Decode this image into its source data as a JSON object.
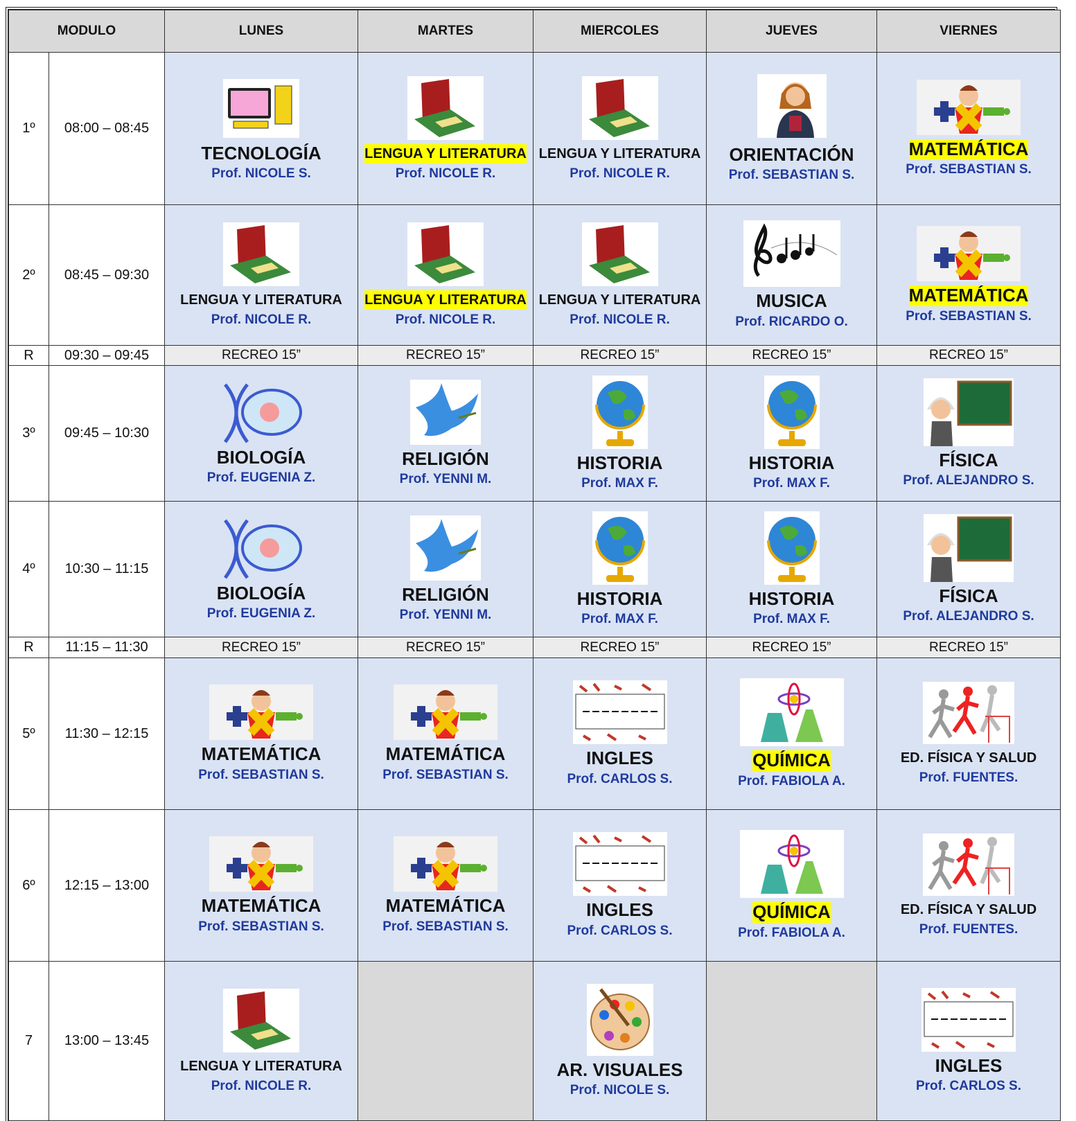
{
  "header": {
    "module": "MODULO",
    "days": [
      "LUNES",
      "MARTES",
      "MIERCOLES",
      "JUEVES",
      "VIERNES"
    ]
  },
  "rows": [
    {
      "module": "1º",
      "time": "08:00 – 08:45",
      "cells": [
        {
          "subject": "TECNOLOGÍA",
          "teacher": "Prof. NICOLE S."
        },
        {
          "subject": "LENGUA Y LITERATURA",
          "teacher": "Prof. NICOLE R."
        },
        {
          "subject": "LENGUA Y LITERATURA",
          "teacher": "Prof. NICOLE R."
        },
        {
          "subject": "ORIENTACIÓN",
          "teacher": "Prof. SEBASTIAN S."
        },
        {
          "subject": "MATEMÁTICA",
          "teacher": "Prof. SEBASTIAN S."
        }
      ]
    },
    {
      "module": "2º",
      "time": "08:45 – 09:30",
      "cells": [
        {
          "subject": "LENGUA Y LITERATURA",
          "teacher": "Prof. NICOLE R."
        },
        {
          "subject": "LENGUA Y LITERATURA",
          "teacher": "Prof. NICOLE R."
        },
        {
          "subject": "LENGUA Y LITERATURA",
          "teacher": "Prof. NICOLE R."
        },
        {
          "subject": "MUSICA",
          "teacher": "Prof. RICARDO O."
        },
        {
          "subject": "MATEMÁTICA",
          "teacher": "Prof. SEBASTIAN S."
        }
      ]
    },
    {
      "module": "R",
      "time": "09:30 – 09:45",
      "cells": [
        "RECREO 15”",
        "RECREO 15”",
        "RECREO 15”",
        "RECREO 15”",
        "RECREO 15”"
      ]
    },
    {
      "module": "3º",
      "time": "09:45 – 10:30",
      "cells": [
        {
          "subject": "BIOLOGÍA",
          "teacher": "Prof. EUGENIA Z."
        },
        {
          "subject": "RELIGIÓN",
          "teacher": "Prof. YENNI M."
        },
        {
          "subject": "HISTORIA",
          "teacher": "Prof. MAX F."
        },
        {
          "subject": "HISTORIA",
          "teacher": "Prof. MAX F."
        },
        {
          "subject": "FÍSICA",
          "teacher": "Prof. ALEJANDRO S."
        }
      ]
    },
    {
      "module": "4º",
      "time": "10:30 – 11:15",
      "cells": [
        {
          "subject": "BIOLOGÍA",
          "teacher": "Prof. EUGENIA Z."
        },
        {
          "subject": "RELIGIÓN",
          "teacher": "Prof. YENNI M."
        },
        {
          "subject": "HISTORIA",
          "teacher": "Prof. MAX F."
        },
        {
          "subject": "HISTORIA",
          "teacher": "Prof. MAX F."
        },
        {
          "subject": "FÍSICA",
          "teacher": "Prof. ALEJANDRO S."
        }
      ]
    },
    {
      "module": "R",
      "time": "11:15 – 11:30",
      "cells": [
        "RECREO 15”",
        "RECREO 15”",
        "RECREO 15”",
        "RECREO 15”",
        "RECREO 15”"
      ]
    },
    {
      "module": "5º",
      "time": "11:30 – 12:15",
      "cells": [
        {
          "subject": "MATEMÁTICA",
          "teacher": "Prof. SEBASTIAN S."
        },
        {
          "subject": "MATEMÁTICA",
          "teacher": "Prof. SEBASTIAN S."
        },
        {
          "subject": "INGLES",
          "teacher": "Prof. CARLOS S."
        },
        {
          "subject": "QUÍMICA",
          "teacher": "Prof. FABIOLA A."
        },
        {
          "subject": "ED. FÍSICA Y SALUD",
          "teacher": "Prof. FUENTES."
        }
      ]
    },
    {
      "module": "6º",
      "time": "12:15 – 13:00",
      "cells": [
        {
          "subject": "MATEMÁTICA",
          "teacher": "Prof. SEBASTIAN S."
        },
        {
          "subject": "MATEMÁTICA",
          "teacher": "Prof. SEBASTIAN S."
        },
        {
          "subject": "INGLES",
          "teacher": "Prof. CARLOS S."
        },
        {
          "subject": "QUÍMICA",
          "teacher": "Prof. FABIOLA A."
        },
        {
          "subject": "ED. FÍSICA Y SALUD",
          "teacher": "Prof. FUENTES."
        }
      ]
    },
    {
      "module": "7",
      "time": "13:00 – 13:45",
      "cells": [
        {
          "subject": "LENGUA Y LITERATURA",
          "teacher": "Prof. NICOLE R."
        },
        null,
        {
          "subject": "AR. VISUALES",
          "teacher": "Prof. NICOLE S."
        },
        null,
        {
          "subject": "INGLES",
          "teacher": "Prof. CARLOS S."
        }
      ]
    }
  ]
}
